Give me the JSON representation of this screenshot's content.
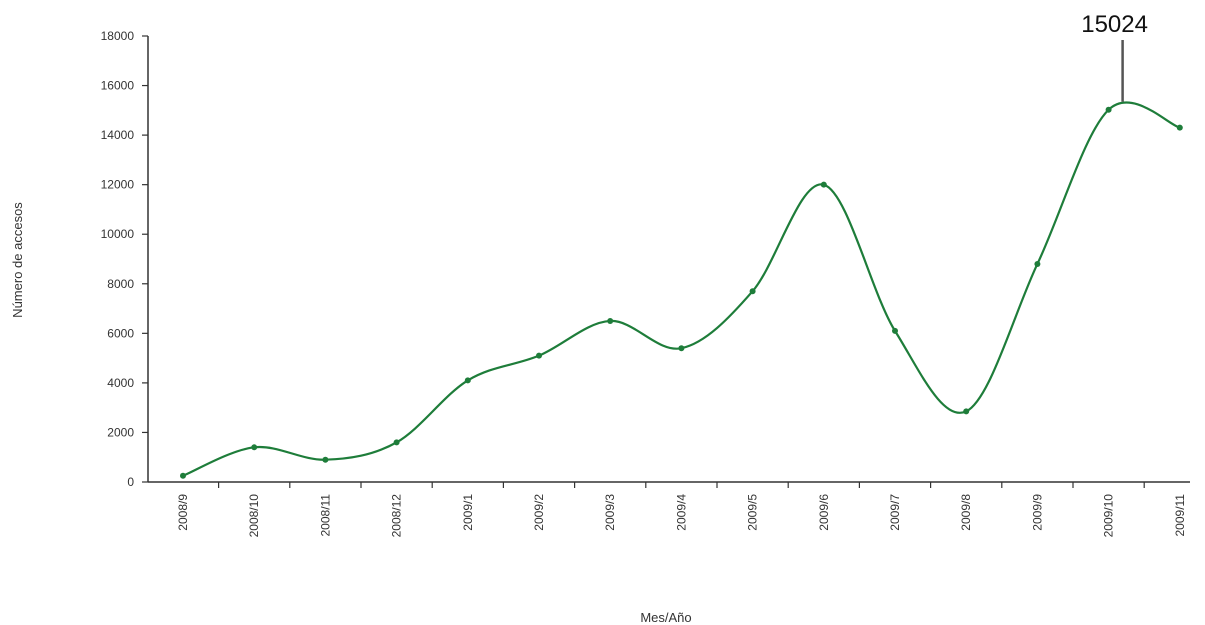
{
  "chart_data": {
    "type": "line",
    "categories": [
      "2008/9",
      "2008/10",
      "2008/11",
      "2008/12",
      "2009/1",
      "2009/2",
      "2009/3",
      "2009/4",
      "2009/5",
      "2009/6",
      "2009/7",
      "2009/8",
      "2009/9",
      "2009/10",
      "2009/11"
    ],
    "series": [
      {
        "values": [
          250,
          1400,
          900,
          1600,
          4100,
          5100,
          6500,
          5400,
          7700,
          12000,
          6100,
          2850,
          8800,
          15024,
          14300
        ]
      }
    ],
    "title": "",
    "xlabel": "Mes/Año",
    "ylabel": "Número de accesos",
    "ylim": [
      0,
      18000
    ],
    "yticks": [
      0,
      2000,
      4000,
      6000,
      8000,
      10000,
      12000,
      14000,
      16000,
      18000
    ],
    "ytick_labels": [
      "0",
      "2000",
      "4000",
      "6000",
      "8000",
      "10000",
      "12000",
      "14000",
      "16000",
      "18000"
    ],
    "grid": false,
    "legend": "none",
    "line_color": "#1e7d3a",
    "marker_color": "#1e7d3a",
    "annotation": {
      "category": "2009/10",
      "value": 15024,
      "text": "15024"
    }
  }
}
